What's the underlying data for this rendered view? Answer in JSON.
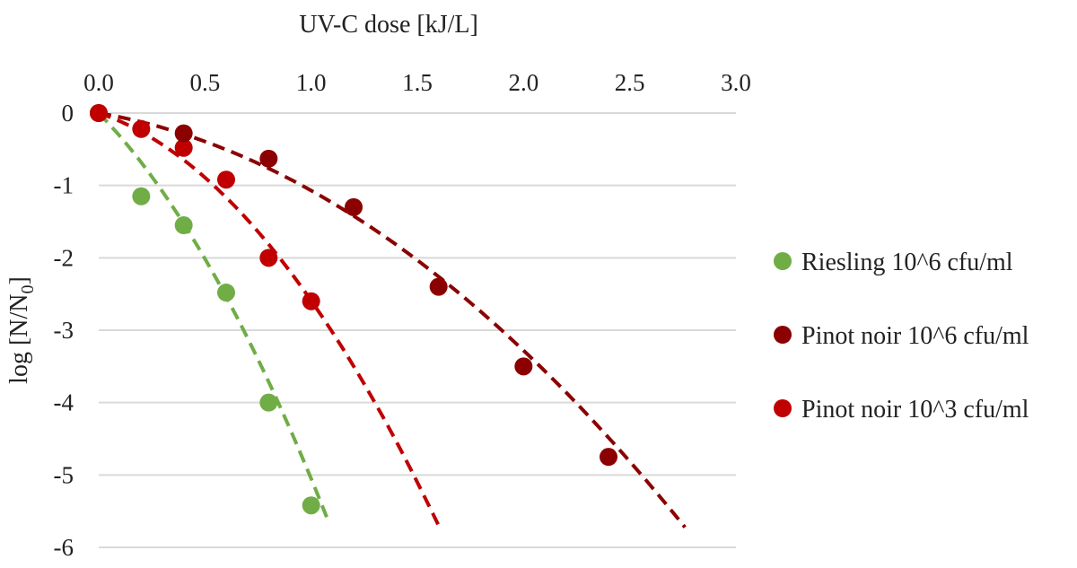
{
  "chart_data": {
    "type": "scatter",
    "xlabel": "UV-C dose [kJ/L]",
    "ylabel_main": "log [N/N",
    "ylabel_sub": "0",
    "ylabel_close": "]",
    "x_axis_position": "top",
    "xlim": [
      0,
      3
    ],
    "ylim": [
      -6,
      0
    ],
    "x_ticks": [
      "0.0",
      "0.5",
      "1.0",
      "1.5",
      "2.0",
      "2.5",
      "3.0"
    ],
    "y_ticks": [
      "0",
      "-1",
      "-2",
      "-3",
      "-4",
      "-5",
      "-6"
    ],
    "grid": "horizontal",
    "legend_position": "right",
    "series": [
      {
        "name": "Riesling 10^6 cfu/ml",
        "color": "#70ad47",
        "x": [
          0,
          0.2,
          0.4,
          0.6,
          0.8,
          1.0
        ],
        "y": [
          0,
          -1.15,
          -1.55,
          -2.48,
          -4.0,
          -5.42
        ],
        "fit": {
          "x_end": 1.08,
          "coef_linear": -3.0,
          "coef_quad": -2.05
        }
      },
      {
        "name": "Pinot noir 10^6 cfu/ml",
        "color": "#8b0000",
        "x": [
          0.4,
          0.8,
          1.2,
          1.6,
          2.0,
          2.4
        ],
        "y": [
          -0.28,
          -0.63,
          -1.3,
          -2.4,
          -3.5,
          -4.75
        ],
        "fit": {
          "x_end": 2.76,
          "coef_linear": -0.5,
          "coef_quad": -0.57
        }
      },
      {
        "name": "Pinot noir 10^3 cfu/ml",
        "color": "#c00000",
        "x": [
          0,
          0.2,
          0.4,
          0.6,
          0.8,
          1.0
        ],
        "y": [
          0,
          -0.22,
          -0.48,
          -0.92,
          -2.0,
          -2.6
        ],
        "fit": {
          "x_end": 1.6,
          "coef_linear": -0.97,
          "coef_quad": -1.62
        }
      }
    ]
  }
}
